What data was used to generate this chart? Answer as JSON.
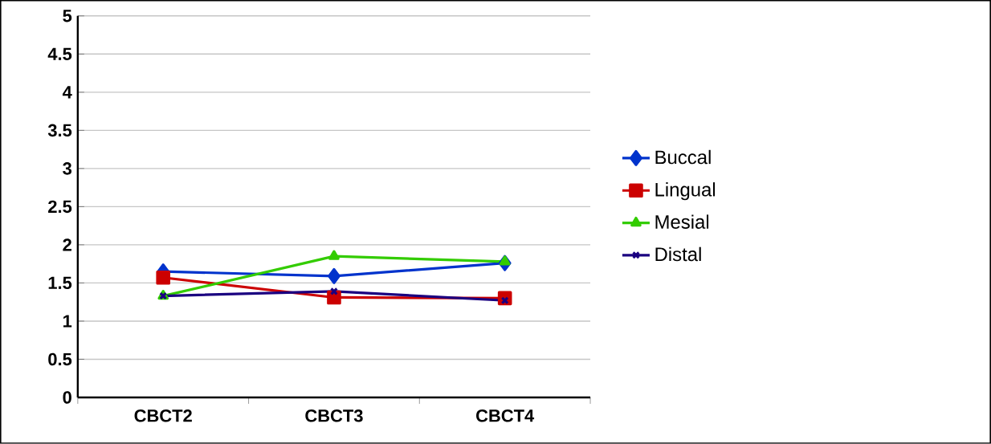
{
  "chart_data": {
    "type": "line",
    "categories": [
      "CBCT2",
      "CBCT3",
      "CBCT4"
    ],
    "series": [
      {
        "name": "Buccal",
        "color": "#0033cc",
        "marker": "diamond",
        "values": [
          1.65,
          1.59,
          1.76
        ]
      },
      {
        "name": "Lingual",
        "color": "#cc0000",
        "marker": "square",
        "values": [
          1.57,
          1.31,
          1.3
        ]
      },
      {
        "name": "Mesial",
        "color": "#33cc00",
        "marker": "triangle",
        "values": [
          1.33,
          1.85,
          1.78
        ]
      },
      {
        "name": "Distal",
        "color": "#1a0080",
        "marker": "cross",
        "values": [
          1.33,
          1.39,
          1.27
        ]
      }
    ],
    "ylim": [
      0,
      5
    ],
    "yticks": [
      0,
      0.5,
      1,
      1.5,
      2,
      2.5,
      3,
      3.5,
      4,
      4.5,
      5
    ],
    "grid": "y",
    "legend": "right",
    "line_style": "solid"
  }
}
